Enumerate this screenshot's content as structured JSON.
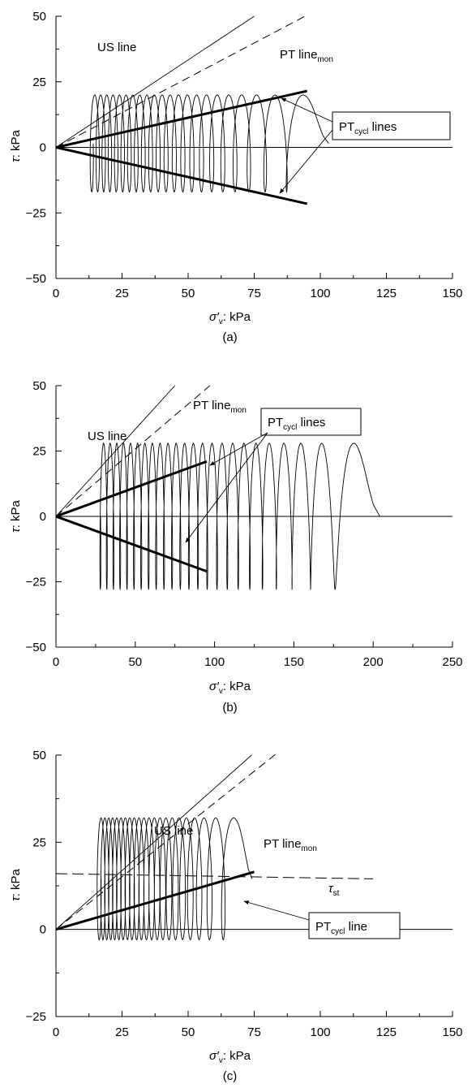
{
  "chart_data": [
    {
      "panel_label": "(a)",
      "type": "line",
      "xlabel_symbol": "σ′",
      "xlabel_sub": "v",
      "xlabel_unit": ": kPa",
      "ylabel_symbol": "τ",
      "ylabel_unit": ": kPa",
      "xlim": [
        0,
        150
      ],
      "ylim": [
        -50,
        50
      ],
      "xticks": [
        0,
        25,
        50,
        75,
        100,
        125,
        150
      ],
      "yticks": [
        -50,
        -25,
        0,
        25,
        50
      ],
      "grid": false,
      "cyclic": {
        "tau_max": 20,
        "tau_min": -17,
        "sigma_start": 101,
        "sigma_end": 13,
        "cycles": 22
      },
      "series": [
        {
          "label_main": "US line",
          "line_style": "thin-solid",
          "x": [
            0,
            75
          ],
          "y": [
            0,
            50
          ]
        },
        {
          "label_main": "PT line",
          "label_sub": "mon",
          "line_style": "dashed",
          "x": [
            0,
            98
          ],
          "y": [
            0,
            52
          ]
        },
        {
          "label_main": "PT",
          "label_sub": "cycl",
          "label_tail": " lines",
          "line_style": "thick-solid",
          "lines": [
            {
              "x": [
                0,
                95
              ],
              "y": [
                0,
                21.5
              ]
            },
            {
              "x": [
                0,
                95
              ],
              "y": [
                0,
                -21.5
              ]
            }
          ]
        }
      ]
    },
    {
      "panel_label": "(b)",
      "type": "line",
      "xlabel_symbol": "σ′",
      "xlabel_sub": "v",
      "xlabel_unit": ": kPa",
      "ylabel_symbol": "τ",
      "ylabel_unit": ": kPa",
      "xlim": [
        0,
        250
      ],
      "ylim": [
        -50,
        50
      ],
      "xticks": [
        0,
        50,
        100,
        150,
        200,
        250
      ],
      "yticks": [
        -50,
        -25,
        0,
        25,
        50
      ],
      "grid": false,
      "cyclic": {
        "tau_max": 28,
        "tau_min": -28,
        "sigma_start": 202,
        "sigma_end": 27,
        "cycles": 24
      },
      "series": [
        {
          "label_main": "US line",
          "line_style": "thin-solid",
          "x": [
            0,
            75
          ],
          "y": [
            0,
            50
          ]
        },
        {
          "label_main": "PT line",
          "label_sub": "mon",
          "line_style": "dashed",
          "x": [
            0,
            97
          ],
          "y": [
            0,
            50
          ]
        },
        {
          "label_main": "PT",
          "label_sub": "cycl",
          "label_tail": " lines",
          "line_style": "thick-solid",
          "lines": [
            {
              "x": [
                0,
                95
              ],
              "y": [
                0,
                21
              ]
            },
            {
              "x": [
                0,
                95
              ],
              "y": [
                0,
                -21
              ]
            }
          ]
        }
      ]
    },
    {
      "panel_label": "(c)",
      "type": "line",
      "xlabel_symbol": "σ′",
      "xlabel_sub": "v",
      "xlabel_unit": ": kPa",
      "ylabel_symbol": "τ",
      "ylabel_unit": ": kPa",
      "xlim": [
        0,
        150
      ],
      "ylim": [
        -25,
        50
      ],
      "xticks": [
        0,
        25,
        50,
        75,
        100,
        125,
        150
      ],
      "yticks": [
        -25,
        0,
        25,
        50
      ],
      "grid": false,
      "cyclic": {
        "tau_max": 32,
        "tau_min": -3,
        "sigma_start": 72,
        "sigma_end": 16,
        "cycles": 22
      },
      "series": [
        {
          "label_main": "US line",
          "line_style": "thin-solid",
          "x": [
            0,
            74
          ],
          "y": [
            0,
            50
          ]
        },
        {
          "label_main": "PT line",
          "label_sub": "mon",
          "line_style": "dashed",
          "x": [
            0,
            86
          ],
          "y": [
            0,
            52
          ]
        },
        {
          "label_main": "τ",
          "label_sub": "st",
          "line_style": "long-dashed",
          "x": [
            0,
            120
          ],
          "y": [
            16,
            14.5
          ]
        },
        {
          "label_main": "PT",
          "label_sub": "cycl",
          "label_tail": " line",
          "line_style": "thick-solid",
          "x": [
            0,
            75
          ],
          "y": [
            0,
            16.5
          ]
        }
      ]
    }
  ]
}
